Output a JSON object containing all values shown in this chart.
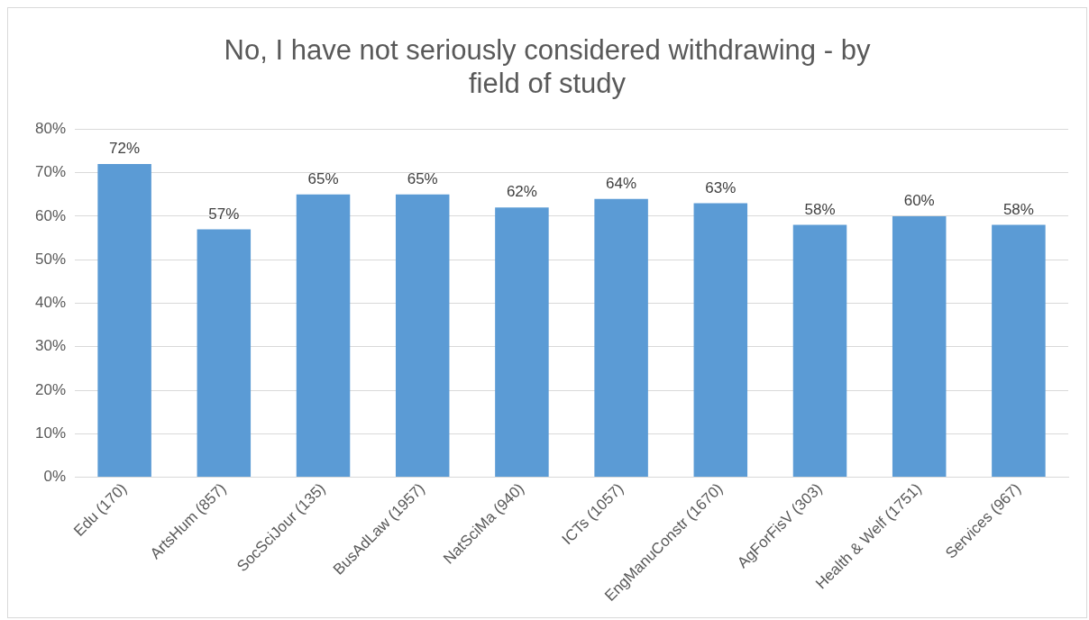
{
  "chart_data": {
    "type": "bar",
    "title": "No, I have not seriously considered withdrawing - by field of study",
    "categories": [
      "Edu (170)",
      "ArtsHum (857)",
      "SocSciJour (135)",
      "BusAdLaw (1957)",
      "NatSciMa (940)",
      "ICTs (1057)",
      "EngManuConstr (1670)",
      "AgForFisV (303)",
      "Health & Welf (1751)",
      "Services (967)"
    ],
    "values": [
      72,
      57,
      65,
      65,
      62,
      64,
      63,
      58,
      60,
      58
    ],
    "value_labels": [
      "72%",
      "57%",
      "65%",
      "65%",
      "62%",
      "64%",
      "63%",
      "58%",
      "60%",
      "58%"
    ],
    "color": "#5b9bd5",
    "ylim": [
      0,
      80
    ],
    "yticks": [
      {
        "value": 0,
        "label": "0%"
      },
      {
        "value": 10,
        "label": "10%"
      },
      {
        "value": 20,
        "label": "20%"
      },
      {
        "value": 30,
        "label": "30%"
      },
      {
        "value": 40,
        "label": "40%"
      },
      {
        "value": 50,
        "label": "50%"
      },
      {
        "value": 60,
        "label": "60%"
      },
      {
        "value": 70,
        "label": "70%"
      },
      {
        "value": 80,
        "label": "80%"
      }
    ],
    "grid": "y",
    "legend": false
  }
}
